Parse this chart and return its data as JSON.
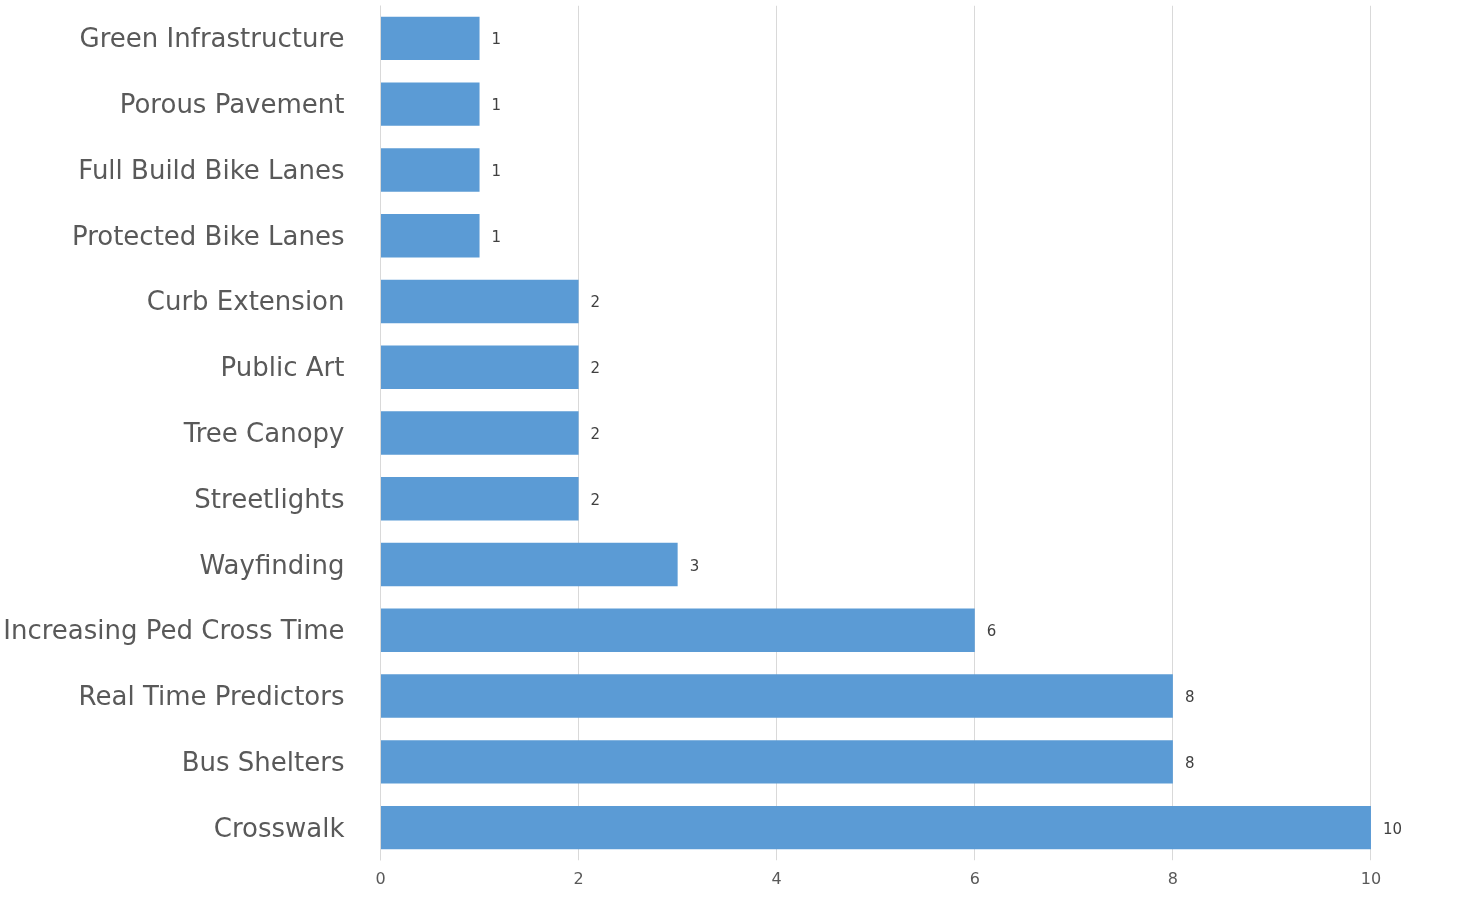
{
  "chart_data": {
    "type": "bar",
    "orientation": "horizontal",
    "categories": [
      "Green Infrastructure",
      "Porous Pavement",
      "Full Build Bike Lanes",
      "Protected Bike Lanes",
      "Curb Extension",
      "Public Art",
      "Tree Canopy",
      "Streetlights",
      "Wayfinding",
      "Increasing Ped Cross Time",
      "Real Time Predictors",
      "Bus Shelters",
      "Crosswalk"
    ],
    "values": [
      1,
      1,
      1,
      1,
      2,
      2,
      2,
      2,
      3,
      6,
      8,
      8,
      10
    ],
    "color": "#5b9bd5",
    "xlim": [
      0,
      10
    ],
    "xticks": [
      0,
      2,
      4,
      6,
      8,
      10
    ],
    "grid": "x",
    "data_labels": true
  }
}
